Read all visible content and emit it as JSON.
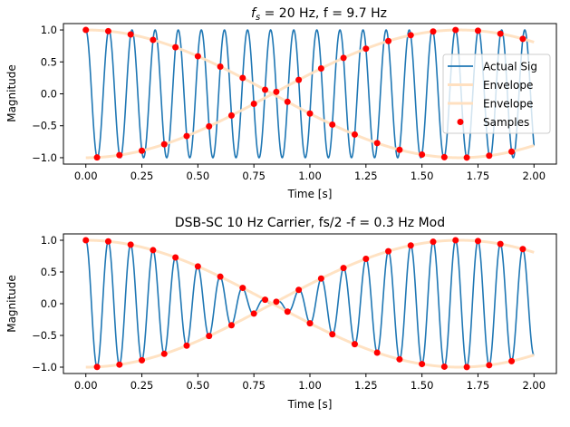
{
  "chart_data": [
    {
      "type": "line",
      "title": "f_s = 20 Hz, f = 9.7 Hz",
      "title_parts": {
        "f": "f",
        "sub": "s",
        "rest": " = 20 Hz, f = 9.7 Hz"
      },
      "xlabel": "Time [s]",
      "ylabel": "Magnitude",
      "xlim": [
        -0.1,
        2.1
      ],
      "ylim": [
        -1.1,
        1.1
      ],
      "xticks": [
        "0.00",
        "0.25",
        "0.50",
        "0.75",
        "1.00",
        "1.25",
        "1.50",
        "1.75",
        "2.00"
      ],
      "yticks": [
        "-1.0",
        "-0.5",
        "0.0",
        "0.5",
        "1.0"
      ],
      "grid": false,
      "legend_position": "center-right",
      "signal": {
        "name": "Actual Sig",
        "kind": "cos(2π·9.7·t)",
        "frequency_hz": 9.7,
        "t_range": [
          0,
          2
        ],
        "color": "#1f77b4"
      },
      "envelope": {
        "name": "Envelope",
        "kind": "±cos(2π·0.3·t)",
        "frequency_hz": 0.3,
        "t_range": [
          0,
          2
        ],
        "color": "#ffe0c0"
      },
      "samples": {
        "name": "Samples",
        "color": "#ff0000",
        "fs_hz": 20,
        "values": [
          1.0,
          -0.996,
          0.982,
          -0.96,
          0.93,
          -0.891,
          0.844,
          -0.79,
          0.729,
          -0.661,
          0.588,
          -0.509,
          0.426,
          -0.339,
          0.249,
          -0.156,
          0.063,
          0.031,
          -0.125,
          0.218,
          -0.309,
          0.397,
          -0.482,
          0.562,
          -0.637,
          0.707,
          -0.771,
          0.827,
          -0.876,
          0.918,
          -0.951,
          0.976,
          -0.992,
          0.9995,
          -0.998,
          0.988,
          -0.969,
          0.941,
          -0.905,
          0.861
        ]
      },
      "legend": [
        "Actual Sig",
        "Envelope",
        "Envelope",
        "Samples"
      ]
    },
    {
      "type": "line",
      "title": "DSB-SC 10 Hz Carrier, fs/2 -f = 0.3 Hz Mod",
      "xlabel": "Time [s]",
      "ylabel": "Magnitude",
      "xlim": [
        -0.1,
        2.1
      ],
      "ylim": [
        -1.1,
        1.1
      ],
      "xticks": [
        "0.00",
        "0.25",
        "0.50",
        "0.75",
        "1.00",
        "1.25",
        "1.50",
        "1.75",
        "2.00"
      ],
      "yticks": [
        "-1.0",
        "-0.5",
        "0.0",
        "0.5",
        "1.0"
      ],
      "grid": false,
      "signal": {
        "kind": "cos(2π·10·t)·cos(2π·0.3·t)",
        "carrier_hz": 10,
        "mod_hz": 0.3,
        "t_range": [
          0,
          2
        ],
        "color": "#1f77b4"
      },
      "envelope": {
        "kind": "±cos(2π·0.3·t)",
        "frequency_hz": 0.3,
        "t_range": [
          0,
          2
        ],
        "color": "#ffe0c0"
      },
      "samples": {
        "color": "#ff0000",
        "fs_hz": 20,
        "values": [
          1.0,
          -0.996,
          0.982,
          -0.96,
          0.93,
          -0.891,
          0.844,
          -0.79,
          0.729,
          -0.661,
          0.588,
          -0.509,
          0.426,
          -0.339,
          0.249,
          -0.156,
          0.063,
          0.031,
          -0.125,
          0.218,
          -0.309,
          0.397,
          -0.482,
          0.562,
          -0.637,
          0.707,
          -0.771,
          0.827,
          -0.876,
          0.918,
          -0.951,
          0.976,
          -0.992,
          0.9995,
          -0.998,
          0.988,
          -0.969,
          0.941,
          -0.905,
          0.861
        ]
      }
    }
  ]
}
